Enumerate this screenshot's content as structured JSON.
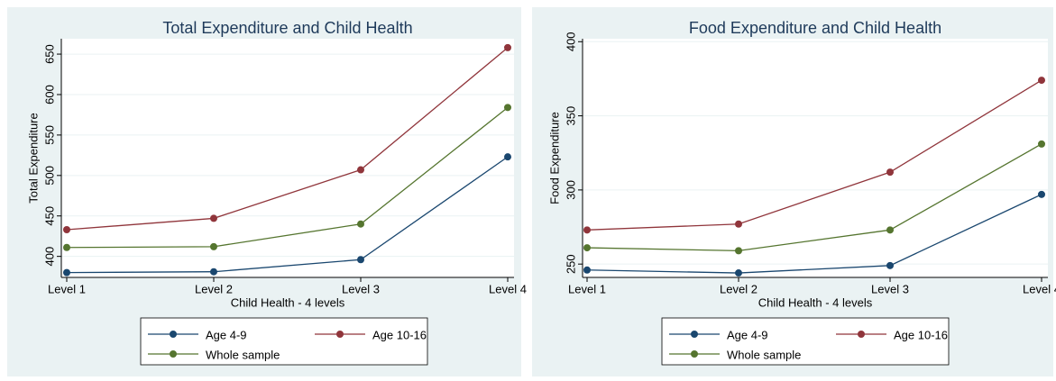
{
  "chart_data": [
    {
      "type": "line",
      "title": "Total Expenditure and Child Health",
      "x_label": "Child Health - 4 levels",
      "y_label": "Total Expenditure",
      "categories": [
        "Level 1",
        "Level 2",
        "Level 3",
        "Level 4"
      ],
      "series": [
        {
          "name": "Age 4-9",
          "color": "#1a476f",
          "values": [
            380,
            381,
            396,
            523
          ]
        },
        {
          "name": "Age 10-16",
          "color": "#90353b",
          "values": [
            433,
            447,
            507,
            658
          ]
        },
        {
          "name": "Whole sample",
          "color": "#55752f",
          "values": [
            411,
            412,
            440,
            584
          ]
        }
      ],
      "ylim": [
        374,
        669
      ],
      "yticks": [
        400,
        450,
        500,
        550,
        600,
        650
      ],
      "grid": true
    },
    {
      "type": "line",
      "title": "Food Expenditure and Child Health",
      "x_label": "Child Health - 4 levels",
      "y_label": "Food Expenditure",
      "categories": [
        "Level 1",
        "Level 2",
        "Level 3",
        "Level 4"
      ],
      "series": [
        {
          "name": "Age 4-9",
          "color": "#1a476f",
          "values": [
            246,
            244,
            249,
            297
          ]
        },
        {
          "name": "Age 10-16",
          "color": "#90353b",
          "values": [
            273,
            277,
            312,
            374
          ]
        },
        {
          "name": "Whole sample",
          "color": "#55752f",
          "values": [
            261,
            259,
            273,
            331
          ]
        }
      ],
      "ylim": [
        241,
        402
      ],
      "yticks": [
        250,
        300,
        350,
        400
      ],
      "grid": true
    }
  ]
}
